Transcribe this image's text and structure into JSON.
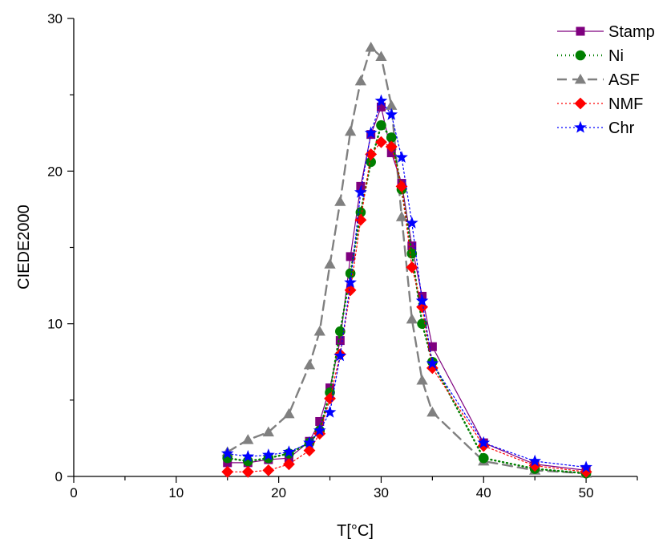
{
  "chart_data": {
    "type": "line",
    "xlabel": "T[°C]",
    "ylabel": "CIEDE2000",
    "xlim": [
      0,
      55
    ],
    "ylim": [
      0,
      30
    ],
    "xticks": [
      0,
      10,
      20,
      30,
      40,
      50
    ],
    "yticks": [
      0,
      10,
      20,
      30
    ],
    "legend_position": "top-right",
    "series": [
      {
        "name": "Stamp",
        "color": "#7f007f",
        "marker": "square",
        "line_style": "solid",
        "x": [
          15,
          17,
          19,
          21,
          23,
          24,
          25,
          26,
          27,
          28,
          29,
          30,
          31,
          32,
          33,
          34,
          35,
          40,
          45,
          50
        ],
        "y": [
          0.9,
          0.9,
          1.1,
          1.2,
          2.3,
          3.6,
          5.8,
          8.9,
          14.4,
          19.0,
          22.4,
          24.2,
          21.2,
          19.2,
          15.1,
          11.8,
          8.5,
          2.2,
          0.8,
          0.4
        ]
      },
      {
        "name": "Ni",
        "color": "#007f00",
        "marker": "circle",
        "line_style": "dotted",
        "x": [
          15,
          17,
          19,
          21,
          23,
          24,
          25,
          26,
          27,
          28,
          29,
          30,
          31,
          32,
          33,
          34,
          35,
          40,
          45,
          50
        ],
        "y": [
          1.2,
          1.0,
          1.2,
          1.5,
          2.2,
          3.0,
          5.5,
          9.5,
          13.3,
          17.3,
          20.6,
          23.0,
          22.2,
          18.8,
          14.6,
          10.0,
          7.5,
          1.2,
          0.5,
          0.2
        ]
      },
      {
        "name": "ASF",
        "color": "#808080",
        "marker": "triangle",
        "line_style": "dashed",
        "x": [
          15,
          17,
          19,
          21,
          23,
          24,
          25,
          26,
          27,
          28,
          29,
          30,
          31,
          32,
          33,
          34,
          35,
          40,
          45,
          50
        ],
        "y": [
          1.6,
          2.4,
          2.9,
          4.1,
          7.3,
          9.5,
          13.9,
          18.0,
          22.6,
          25.9,
          28.1,
          27.5,
          24.3,
          17.0,
          10.3,
          6.3,
          4.2,
          1.0,
          0.4,
          0.2
        ]
      },
      {
        "name": "NMF",
        "color": "#ff0000",
        "marker": "diamond",
        "line_style": "dotted",
        "x": [
          15,
          17,
          19,
          21,
          23,
          24,
          25,
          26,
          27,
          28,
          29,
          30,
          31,
          32,
          33,
          34,
          35,
          40,
          45,
          50
        ],
        "y": [
          0.3,
          0.3,
          0.4,
          0.8,
          1.7,
          2.8,
          5.1,
          8.0,
          12.2,
          16.8,
          21.1,
          21.9,
          21.6,
          19.0,
          13.7,
          11.1,
          7.1,
          2.0,
          0.7,
          0.3
        ]
      },
      {
        "name": "Chr",
        "color": "#0000ff",
        "marker": "star",
        "line_style": "dotted",
        "x": [
          15,
          17,
          19,
          21,
          23,
          24,
          25,
          26,
          27,
          28,
          29,
          30,
          31,
          32,
          33,
          34,
          35,
          40,
          45,
          50
        ],
        "y": [
          1.5,
          1.3,
          1.4,
          1.6,
          2.2,
          3.0,
          4.2,
          7.9,
          12.7,
          18.6,
          22.5,
          24.6,
          23.7,
          20.9,
          16.6,
          11.5,
          7.4,
          2.2,
          1.0,
          0.6
        ]
      }
    ]
  }
}
